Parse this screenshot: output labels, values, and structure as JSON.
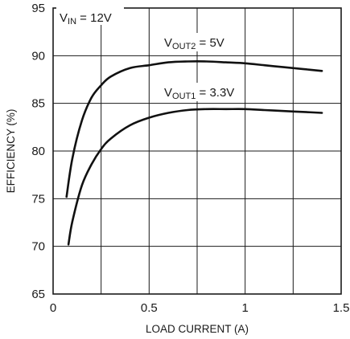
{
  "chart_data": {
    "type": "line",
    "xlabel": "LOAD CURRENT (A)",
    "ylabel": "EFFICIENCY (%)",
    "xlim": [
      0,
      1.5
    ],
    "ylim": [
      65,
      95
    ],
    "x_ticks": [
      "0",
      "0.5",
      "1",
      "1.5"
    ],
    "y_ticks": [
      "65",
      "70",
      "75",
      "80",
      "85",
      "90",
      "95"
    ],
    "grid": true,
    "annotation": {
      "prefix": "V",
      "sub": "IN",
      "suffix": " = 12V"
    },
    "series": [
      {
        "name": "VOUT2 = 5V",
        "label": {
          "prefix": "V",
          "sub": "OUT2",
          "suffix": " = 5V"
        },
        "x": [
          0.07,
          0.1,
          0.15,
          0.2,
          0.25,
          0.3,
          0.4,
          0.5,
          0.6,
          0.7,
          0.8,
          0.9,
          1.0,
          1.1,
          1.2,
          1.3,
          1.4
        ],
        "y": [
          75.2,
          79.2,
          83.2,
          85.6,
          86.9,
          87.8,
          88.7,
          89.0,
          89.3,
          89.4,
          89.4,
          89.3,
          89.2,
          89.0,
          88.8,
          88.6,
          88.4
        ]
      },
      {
        "name": "VOUT1 = 3.3V",
        "label": {
          "prefix": "V",
          "sub": "OUT1",
          "suffix": " = 3.3V"
        },
        "x": [
          0.08,
          0.1,
          0.15,
          0.2,
          0.25,
          0.3,
          0.4,
          0.5,
          0.6,
          0.7,
          0.8,
          0.9,
          1.0,
          1.1,
          1.2,
          1.3,
          1.4
        ],
        "y": [
          70.2,
          72.6,
          76.4,
          78.6,
          80.2,
          81.3,
          82.7,
          83.5,
          84.0,
          84.3,
          84.4,
          84.4,
          84.4,
          84.3,
          84.2,
          84.1,
          84.0
        ]
      }
    ]
  }
}
